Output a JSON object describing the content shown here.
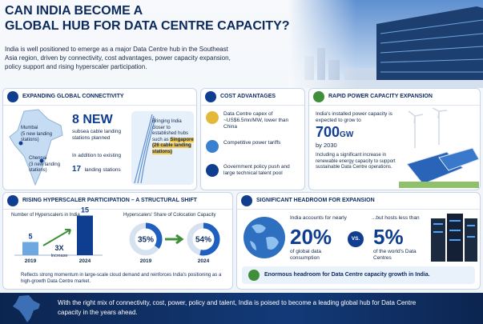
{
  "header": {
    "title_line1": "CAN INDIA BECOME A",
    "title_line2": "GLOBAL HUB FOR DATA CENTRE CAPACITY?",
    "intro": "India is well positioned to emerge as a major Data Centre hub in the Southeast Asia region, driven by connectivity, cost advantages, power capacity expansion, policy support and rising hyperscaler participation."
  },
  "connectivity": {
    "heading": "EXPANDING GLOBAL CONNECTIVITY",
    "mumbai": "Mumbai",
    "mumbai_note": "(5 new landing stations)",
    "chennai": "Chennai",
    "chennai_note": "(3 new landing stations)",
    "new_count": "8 NEW",
    "new_desc": "subsea cable landing stations planned",
    "existing_prefix": "In addition to existing",
    "existing_count": "17",
    "existing_suffix": "landing stations",
    "hub_text": "Bringing India closer to established hubs such as",
    "hub_highlight": "Singapore (26 cable landing stations)"
  },
  "cost": {
    "heading": "COST ADVANTAGES",
    "items": [
      "Data Centre capex of ~US$6.5mn/MW, lower than China",
      "Competitive power tariffs",
      "Government policy push and large technical talent pool"
    ]
  },
  "power": {
    "heading": "RAPID POWER CAPACITY EXPANSION",
    "lead": "India's installed power capacity is expected to grow to",
    "figure": "700",
    "unit": "GW",
    "year": "by 2030",
    "note": "Including a significant increase in renewable energy capacity to support sustainable Data Centre operations."
  },
  "hyperscalers": {
    "heading": "RISING HYPERSCALER PARTICIPATION – A STRUCTURAL SHIFT",
    "count_chart": {
      "type": "bar",
      "title": "Number of Hyperscalers in India",
      "categories": [
        "2019",
        "2024"
      ],
      "values": [
        5,
        15
      ],
      "colors": [
        "#6fa8e0",
        "#0f3d8f"
      ]
    },
    "growth": "3X",
    "growth_label": "Increase",
    "share_chart": {
      "type": "donut",
      "title": "Hyperscalers' Share of Colocation Capacity",
      "categories": [
        "2019",
        "2024"
      ],
      "values": [
        35,
        54
      ],
      "value_labels": [
        "35%",
        "54%"
      ],
      "color": "#1f5fbf"
    },
    "note": "Reflects strong momentum in large-scale cloud demand and reinforces India's positioning as a high-growth Data Centre market."
  },
  "headroom": {
    "heading": "SIGNIFICANT HEADROOM FOR EXPANSION",
    "left_lead": "India accounts for nearly",
    "left_figure": "20%",
    "left_desc": "of global data consumption",
    "vs": "VS.",
    "right_lead": "...but hosts less than",
    "right_figure": "5%",
    "right_desc": "of the world's Data Centres",
    "conclusion": "Enormous headroom for Data Centre capacity growth in India."
  },
  "footer": {
    "text": "With the right mix of connectivity, cost, power, policy and talent, India is poised to become a leading global hub for Data Centre capacity in the years ahead."
  }
}
